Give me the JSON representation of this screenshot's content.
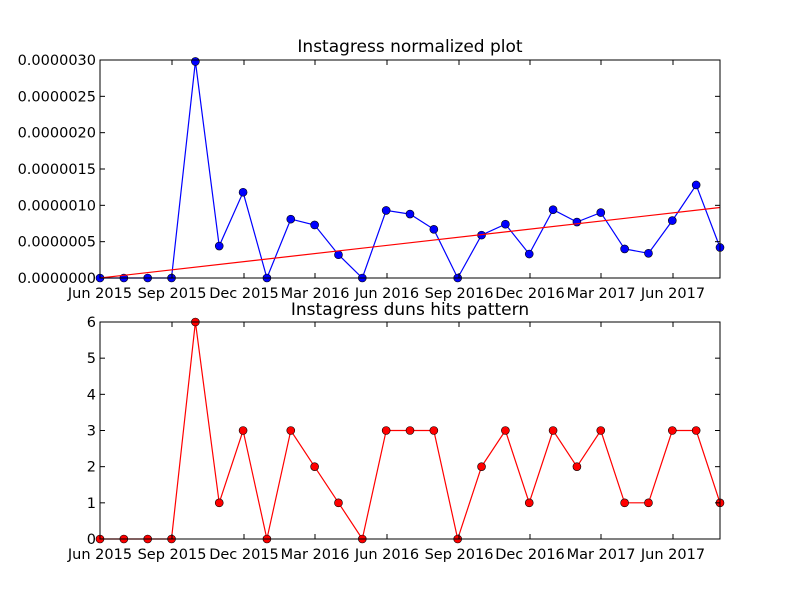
{
  "chart_data": [
    {
      "type": "line",
      "title": "Instagress normalized plot",
      "xlabel": "",
      "ylabel": "",
      "x_tick_labels": [
        "Jun 2015",
        "Sep 2015",
        "Dec 2015",
        "Mar 2016",
        "Jun 2016",
        "Sep 2016",
        "Dec 2016",
        "Mar 2017",
        "Jun 2017"
      ],
      "y_tick_labels": [
        "0.0000000",
        "0.0000005",
        "0.0000010",
        "0.0000015",
        "0.0000020",
        "0.0000025",
        "0.0000030"
      ],
      "ylim": [
        0,
        3e-06
      ],
      "grid": false,
      "series": [
        {
          "kind": "line-with-markers",
          "color": "#0000ff",
          "values": [
            0,
            0,
            0,
            0,
            2.98e-06,
            4.4e-07,
            1.18e-06,
            0,
            8.1e-07,
            7.3e-07,
            3.2e-07,
            0,
            9.3e-07,
            8.8e-07,
            6.7e-07,
            0,
            5.9e-07,
            7.4e-07,
            3.3e-07,
            9.4e-07,
            7.7e-07,
            9e-07,
            4e-07,
            3.4e-07,
            7.9e-07,
            1.28e-06,
            4.2e-07
          ]
        },
        {
          "kind": "trend-line",
          "color": "#ff0000",
          "start_value": 0.0,
          "end_value": 9.7e-07
        }
      ]
    },
    {
      "type": "line",
      "title": "Instagress duns hits pattern",
      "xlabel": "",
      "ylabel": "",
      "x_tick_labels": [
        "Jun 2015",
        "Sep 2015",
        "Dec 2015",
        "Mar 2016",
        "Jun 2016",
        "Sep 2016",
        "Dec 2016",
        "Mar 2017",
        "Jun 2017"
      ],
      "y_tick_labels": [
        "0",
        "1",
        "2",
        "3",
        "4",
        "5",
        "6"
      ],
      "ylim": [
        0,
        6
      ],
      "grid": false,
      "series": [
        {
          "kind": "line-with-markers",
          "color": "#ff0000",
          "values": [
            0,
            0,
            0,
            0,
            6,
            1,
            3,
            0,
            3,
            2,
            1,
            0,
            3,
            3,
            3,
            0,
            2,
            3,
            1,
            3,
            2,
            3,
            1,
            1,
            3,
            3,
            1
          ]
        }
      ]
    }
  ]
}
